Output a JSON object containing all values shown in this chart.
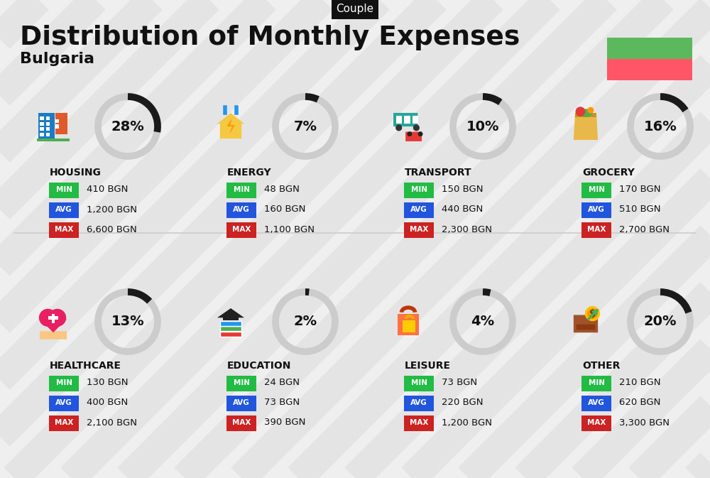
{
  "title": "Distribution of Monthly Expenses",
  "subtitle": "Bulgaria",
  "tag": "Couple",
  "bg_color": "#efefef",
  "title_color": "#111111",
  "subtitle_color": "#111111",
  "tag_bg": "#111111",
  "tag_text_color": "#ffffff",
  "flag_green": "#5cb85c",
  "flag_red": "#ff5566",
  "categories": [
    {
      "name": "HOUSING",
      "pct": 28,
      "min": "410 BGN",
      "avg": "1,200 BGN",
      "max": "6,600 BGN",
      "col": 0,
      "row": 0
    },
    {
      "name": "ENERGY",
      "pct": 7,
      "min": "48 BGN",
      "avg": "160 BGN",
      "max": "1,100 BGN",
      "col": 1,
      "row": 0
    },
    {
      "name": "TRANSPORT",
      "pct": 10,
      "min": "150 BGN",
      "avg": "440 BGN",
      "max": "2,300 BGN",
      "col": 2,
      "row": 0
    },
    {
      "name": "GROCERY",
      "pct": 16,
      "min": "170 BGN",
      "avg": "510 BGN",
      "max": "2,700 BGN",
      "col": 3,
      "row": 0
    },
    {
      "name": "HEALTHCARE",
      "pct": 13,
      "min": "130 BGN",
      "avg": "400 BGN",
      "max": "2,100 BGN",
      "col": 0,
      "row": 1
    },
    {
      "name": "EDUCATION",
      "pct": 2,
      "min": "24 BGN",
      "avg": "73 BGN",
      "max": "390 BGN",
      "col": 1,
      "row": 1
    },
    {
      "name": "LEISURE",
      "pct": 4,
      "min": "73 BGN",
      "avg": "220 BGN",
      "max": "1,200 BGN",
      "col": 2,
      "row": 1
    },
    {
      "name": "OTHER",
      "pct": 20,
      "min": "210 BGN",
      "avg": "620 BGN",
      "max": "3,300 BGN",
      "col": 3,
      "row": 1
    }
  ],
  "min_color": "#22bb44",
  "avg_color": "#2255dd",
  "max_color": "#cc2222",
  "circle_empty": "#cccccc",
  "circle_fill": "#1a1a1a",
  "stripe_color": "#d8d8d8",
  "divider_color": "#cccccc"
}
